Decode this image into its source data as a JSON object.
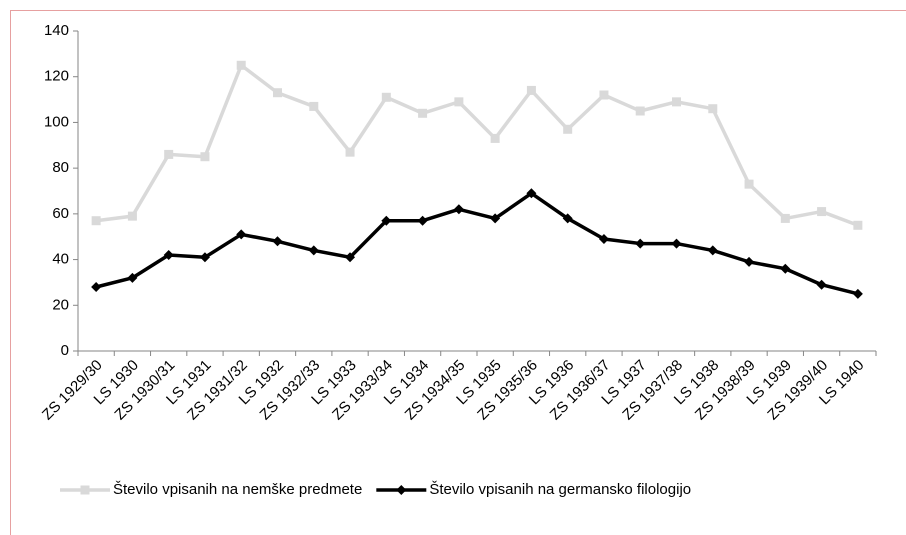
{
  "chart_data": {
    "type": "line",
    "categories": [
      "ZS 1929/30",
      "LS 1930",
      "ZS 1930/31",
      "LS 1931",
      "ZS 1931/32",
      "LS 1932",
      "ZS 1932/33",
      "LS 1933",
      "ZS 1933/34",
      "LS 1934",
      "ZS 1934/35",
      "LS 1935",
      "ZS 1935/36",
      "LS 1936",
      "ZS 1936/37",
      "LS 1937",
      "ZS 1937/38",
      "LS 1938",
      "ZS 1938/39",
      "LS 1939",
      "ZS 1939/40",
      "LS 1940"
    ],
    "series": [
      {
        "name": "Število vpisanih na nemške predmete",
        "color": "#d9d9d9",
        "marker": "square",
        "values": [
          57,
          59,
          86,
          85,
          125,
          113,
          107,
          87,
          111,
          104,
          109,
          93,
          114,
          97,
          112,
          105,
          109,
          106,
          73,
          58,
          61,
          55
        ]
      },
      {
        "name": "Število vpisanih na germansko filologijo",
        "color": "#000000",
        "marker": "diamond",
        "values": [
          28,
          32,
          42,
          41,
          51,
          48,
          44,
          41,
          57,
          57,
          62,
          58,
          69,
          58,
          49,
          47,
          47,
          44,
          39,
          36,
          29,
          25
        ]
      }
    ],
    "ylim": [
      0,
      140
    ],
    "yticks": [
      0,
      20,
      40,
      60,
      80,
      100,
      120,
      140
    ],
    "legend": "bottom"
  }
}
